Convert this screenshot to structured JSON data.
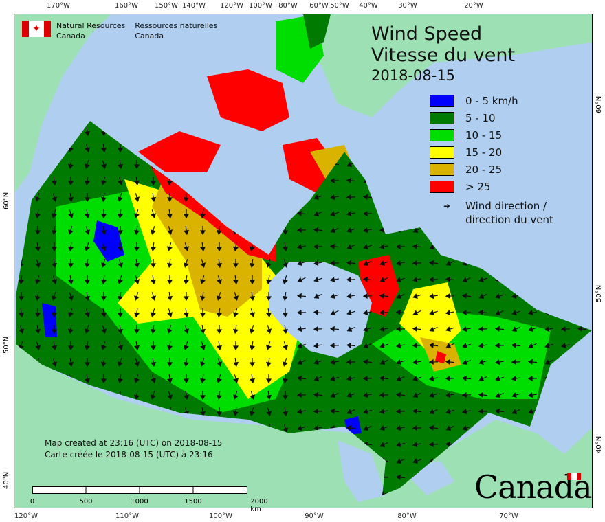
{
  "top_longitudes": [
    "170°W",
    "160°W",
    "150°W",
    "140°W",
    "120°W",
    "100°W",
    "80°W",
    "60°W",
    "50°W",
    "40°W",
    "30°W",
    "20°W"
  ],
  "bottom_longitudes": [
    "120°W",
    "110°W",
    "100°W",
    "90°W",
    "80°W",
    "70°W"
  ],
  "left_latitudes": [
    "60°N",
    "50°N",
    "40°N"
  ],
  "right_latitudes": [
    "60°N",
    "50°N",
    "40°N"
  ],
  "agency": {
    "en_line1": "Natural Resources",
    "en_line2": "Canada",
    "fr_line1": "Ressources naturelles",
    "fr_line2": "Canada"
  },
  "title": {
    "en": "Wind Speed",
    "fr": "Vitesse du vent",
    "date": "2018-08-15"
  },
  "legend": [
    {
      "label": "0 - 5 km/h",
      "color": "#0000ff"
    },
    {
      "label": "5 - 10",
      "color": "#007a00"
    },
    {
      "label": "10 - 15",
      "color": "#00dd00"
    },
    {
      "label": "15 - 20",
      "color": "#ffff00"
    },
    {
      "label": "20 - 25",
      "color": "#d9b300"
    },
    {
      "label": "> 25",
      "color": "#ff0000"
    }
  ],
  "wind_legend": {
    "line1": "Wind direction /",
    "line2": "direction du vent",
    "icon": "arrow-icon"
  },
  "note": {
    "en": "Map created at 23:16 (UTC) on 2018-08-15",
    "fr": "Carte créée le 2018-08-15 (UTC) à 23:16"
  },
  "scale": {
    "labels": [
      "0",
      "500",
      "1000",
      "1500",
      "2000 km"
    ]
  },
  "wordmark": "Canada",
  "colors": {
    "ocean": "#b0cff0",
    "land": "#9de0b4"
  }
}
